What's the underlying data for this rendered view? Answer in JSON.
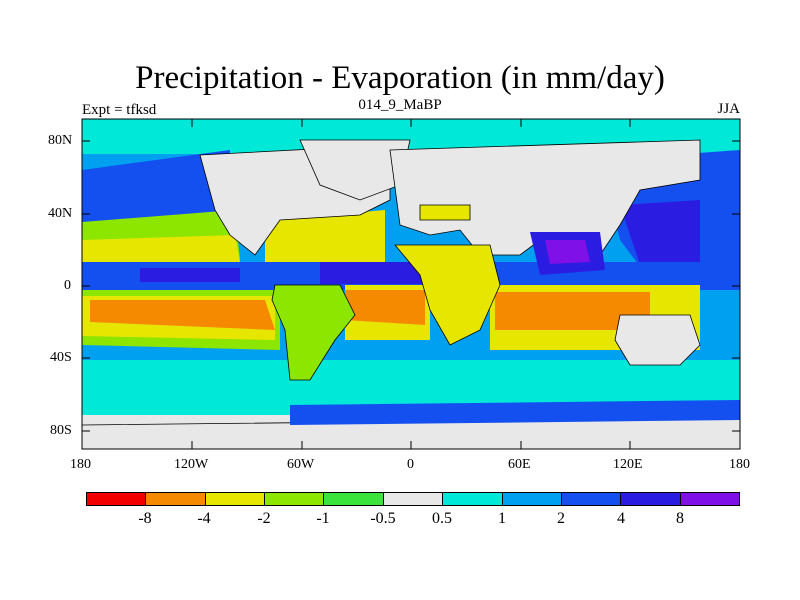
{
  "title": "Precipitation - Evaporation (in mm/day)",
  "subtitle_center": "014_9_MaBP",
  "subtitle_left": "Expt = tfksd",
  "subtitle_right": "JJA",
  "y_ticks": [
    "80N",
    "40N",
    "0",
    "40S",
    "80S"
  ],
  "x_ticks": [
    "180",
    "120W",
    "60W",
    "0",
    "60E",
    "120E",
    "180"
  ],
  "colorbar": {
    "colors": [
      "#f20000",
      "#f58a00",
      "#e6e600",
      "#8ce600",
      "#3ae43a",
      "#e8e8e8",
      "#00e8d8",
      "#00a0f0",
      "#1450f0",
      "#2a1ce0",
      "#8010e8"
    ],
    "labels": [
      "-8",
      "-4",
      "-2",
      "-1",
      "-0.5",
      "0.5",
      "1",
      "2",
      "4",
      "8"
    ]
  }
}
